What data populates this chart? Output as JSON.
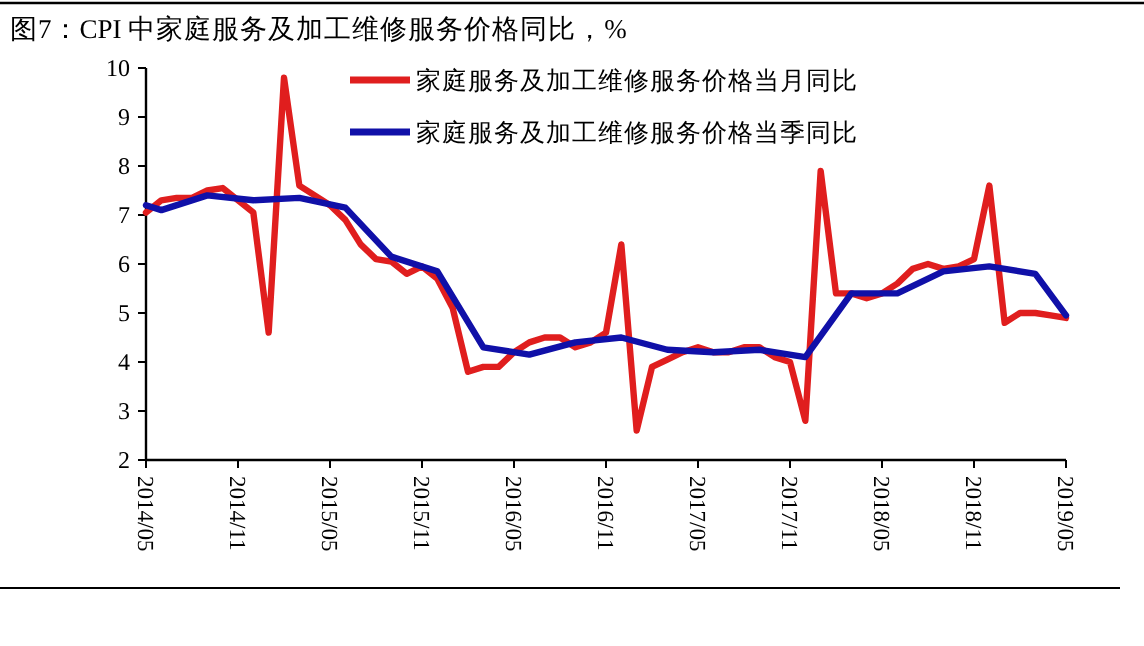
{
  "chart_data": {
    "type": "line",
    "title": "图7：CPI 中家庭服务及加工维修服务价格同比，%",
    "series": [
      {
        "name": "家庭服务及加工维修服务价格当月同比",
        "color": "#e01e1e",
        "x": [
          "2014-05",
          "2014-06",
          "2014-07",
          "2014-08",
          "2014-09",
          "2014-10",
          "2014-11",
          "2014-12",
          "2015-01",
          "2015-02",
          "2015-03",
          "2015-04",
          "2015-05",
          "2015-06",
          "2015-07",
          "2015-08",
          "2015-09",
          "2015-10",
          "2015-11",
          "2015-12",
          "2016-01",
          "2016-02",
          "2016-03",
          "2016-04",
          "2016-05",
          "2016-06",
          "2016-07",
          "2016-08",
          "2016-09",
          "2016-10",
          "2016-11",
          "2016-12",
          "2017-01",
          "2017-02",
          "2017-03",
          "2017-04",
          "2017-05",
          "2017-06",
          "2017-07",
          "2017-08",
          "2017-09",
          "2017-10",
          "2017-11",
          "2017-12",
          "2018-01",
          "2018-02",
          "2018-03",
          "2018-04",
          "2018-05",
          "2018-06",
          "2018-07",
          "2018-08",
          "2018-09",
          "2018-10",
          "2018-11",
          "2018-12",
          "2019-01",
          "2019-02",
          "2019-03",
          "2019-04",
          "2019-05"
        ],
        "values": [
          7.05,
          7.3,
          7.35,
          7.35,
          7.5,
          7.55,
          7.3,
          7.05,
          4.6,
          9.8,
          7.6,
          7.4,
          7.2,
          6.9,
          6.4,
          6.1,
          6.05,
          5.8,
          5.95,
          5.7,
          5.1,
          3.8,
          3.9,
          3.9,
          4.2,
          4.4,
          4.5,
          4.5,
          4.3,
          4.4,
          4.6,
          6.4,
          2.6,
          3.9,
          4.05,
          4.2,
          4.3,
          4.2,
          4.2,
          4.3,
          4.3,
          4.1,
          4.0,
          2.8,
          7.9,
          5.4,
          5.4,
          5.3,
          5.4,
          5.6,
          5.9,
          6.0,
          5.9,
          5.95,
          6.1,
          7.6,
          4.8,
          5.0,
          5.0,
          4.95,
          4.9
        ]
      },
      {
        "name": "家庭服务及加工维修服务价格当季同比",
        "color": "#1010a8",
        "x": [
          "2014-05",
          "2014-06",
          "2014-09",
          "2014-12",
          "2015-03",
          "2015-06",
          "2015-09",
          "2015-12",
          "2016-03",
          "2016-06",
          "2016-09",
          "2016-12",
          "2017-03",
          "2017-06",
          "2017-09",
          "2017-12",
          "2018-03",
          "2018-06",
          "2018-09",
          "2018-12",
          "2019-03",
          "2019-05"
        ],
        "values": [
          7.2,
          7.1,
          7.4,
          7.3,
          7.35,
          7.15,
          6.15,
          5.85,
          4.3,
          4.15,
          4.4,
          4.5,
          4.25,
          4.2,
          4.25,
          4.1,
          5.4,
          5.4,
          5.85,
          5.95,
          5.8,
          4.95
        ]
      }
    ],
    "xlim": [
      "2014-05",
      "2019-05"
    ],
    "xticks": [
      {
        "value": "2014-05",
        "label": "2014/05"
      },
      {
        "value": "2014-11",
        "label": "2014/11"
      },
      {
        "value": "2015-05",
        "label": "2015/05"
      },
      {
        "value": "2015-11",
        "label": "2015/11"
      },
      {
        "value": "2016-05",
        "label": "2016/05"
      },
      {
        "value": "2016-11",
        "label": "2016/11"
      },
      {
        "value": "2017-05",
        "label": "2017/05"
      },
      {
        "value": "2017-11",
        "label": "2017/11"
      },
      {
        "value": "2018-05",
        "label": "2018/05"
      },
      {
        "value": "2018-11",
        "label": "2018/11"
      },
      {
        "value": "2019-05",
        "label": "2019/05"
      }
    ],
    "ylim": [
      2,
      10
    ],
    "yticks": [
      2,
      3,
      4,
      5,
      6,
      7,
      8,
      9,
      10
    ],
    "grid": false,
    "legend": "top right",
    "marker": "none",
    "line_style": "solid"
  }
}
